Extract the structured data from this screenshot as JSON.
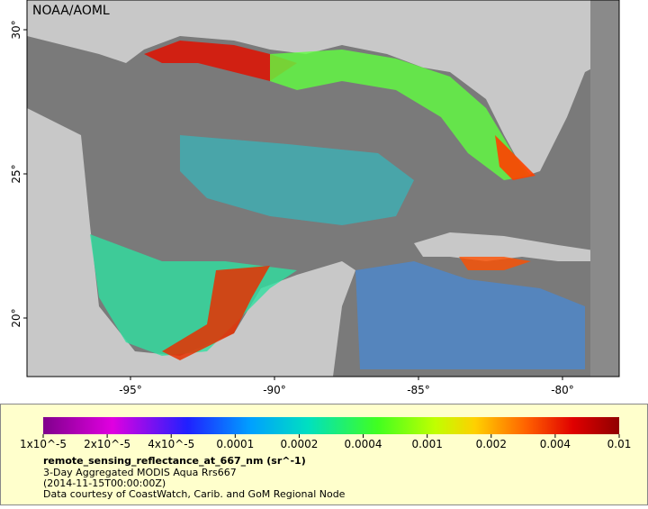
{
  "map": {
    "credit": "NOAA/AOML",
    "lat_ticks": [
      "20°",
      "25°",
      "30°"
    ],
    "lon_ticks": [
      "-95°",
      "-90°",
      "-85°",
      "-80°"
    ]
  },
  "colorbar": {
    "labels": [
      "1x10^-5",
      "2x10^-5",
      "4x10^-5",
      "0.0001",
      "0.0002",
      "0.0004",
      "0.001",
      "0.002",
      "0.004",
      "0.01"
    ]
  },
  "caption": {
    "variable": "remote_sensing_reflectance_at_667_nm (sr^-1)",
    "product": "3-Day Aggregated MODIS Aqua Rrs667",
    "time": "(2014-11-15T00:00:00Z)",
    "source": "Data courtesy of CoastWatch, Carib. and GoM Regional Node"
  }
}
